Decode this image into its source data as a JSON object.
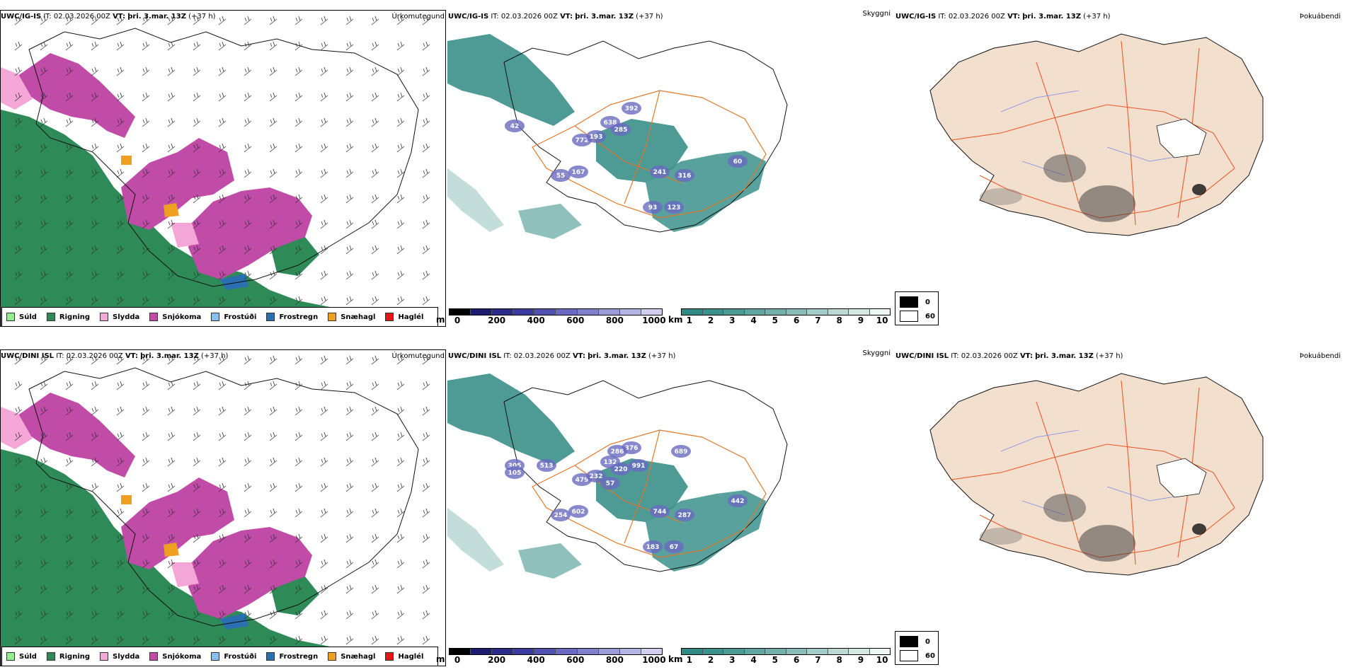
{
  "rows": [
    {
      "model": "UWC/IG-IS",
      "it_label": "IT:",
      "it_value": "02.03.2026 00Z",
      "vt_label": "VT:",
      "vt_value": "þri. 3.mar. 13Z",
      "lead": "(+37 h)",
      "titles": {
        "precip": "Úrkomutegund",
        "visibility": "Skyggni",
        "fog": "Þokuábendi"
      },
      "cloud_labels": [
        "772",
        "638",
        "392",
        "285",
        "193",
        "55",
        "167",
        "241",
        "316",
        "93",
        "123",
        "60",
        "42"
      ]
    },
    {
      "model": "UWC/DINI ISL",
      "it_label": "IT:",
      "it_value": "02.03.2026 00Z",
      "vt_label": "VT:",
      "vt_value": "þri. 3.mar. 13Z",
      "lead": "(+37 h)",
      "titles": {
        "precip": "Úrkomutegund",
        "visibility": "Skyggni",
        "fog": "Þokuábendi"
      },
      "cloud_labels": [
        "479",
        "132",
        "376",
        "220",
        "232",
        "254",
        "602",
        "744",
        "287",
        "183",
        "67",
        "442",
        "305",
        "513",
        "105",
        "286",
        "991",
        "689",
        "57"
      ]
    }
  ],
  "precip_legend": [
    {
      "label": "Súld",
      "color": "#90ee90"
    },
    {
      "label": "Rigning",
      "color": "#2e8b57"
    },
    {
      "label": "Slydda",
      "color": "#f4a6d7"
    },
    {
      "label": "Snjókoma",
      "color": "#c04ca8"
    },
    {
      "label": "Frostúði",
      "color": "#87bff0"
    },
    {
      "label": "Frostregn",
      "color": "#2a6fb0"
    },
    {
      "label": "Snæhagl",
      "color": "#f0a020"
    },
    {
      "label": "Haglél",
      "color": "#e01818"
    }
  ],
  "ceiling_scale": {
    "unit": "m",
    "ticks": [
      "0",
      "200",
      "400",
      "600",
      "800",
      "1000"
    ],
    "colors": [
      "#000000",
      "#1c1c6e",
      "#2a2a8a",
      "#3c3ca0",
      "#5050b0",
      "#6a6ac0",
      "#8080cc",
      "#9a9ad6",
      "#b4b4e2",
      "#d0d0ee"
    ]
  },
  "visibility_scale": {
    "unit": "km",
    "ticks": [
      "1",
      "2",
      "3",
      "4",
      "5",
      "6",
      "7",
      "8",
      "9",
      "10"
    ],
    "colors": [
      "#2f8a84",
      "#3b918b",
      "#4c9a94",
      "#5fa49f",
      "#74b0ab",
      "#8bbdb8",
      "#a3cbc7",
      "#bcd9d6",
      "#d5e8e6",
      "#eef6f5"
    ]
  },
  "fog_legend": [
    {
      "label": "0",
      "color": "#000000"
    },
    {
      "label": "60",
      "color": "#ffffff"
    }
  ]
}
